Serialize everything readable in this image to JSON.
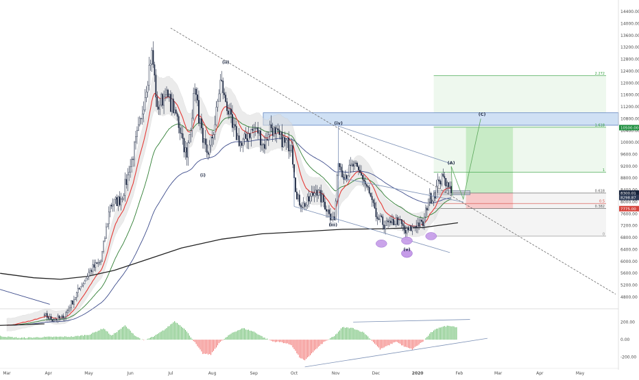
{
  "chart_data": {
    "type": "candlestick",
    "grid": false,
    "price_axis": {
      "position": "right",
      "ylim": [
        4500,
        14700
      ],
      "ticks": [
        "14400.00",
        "14000.00",
        "13600.00",
        "13200.00",
        "12800.00",
        "12400.00",
        "12000.00",
        "11600.00",
        "11200.00",
        "10800.00",
        "10400.00",
        "10000.00",
        "9600.00",
        "9200.00",
        "8800.00",
        "8400.00",
        "8000.00",
        "7600.00",
        "7200.00",
        "6800.00",
        "6400.00",
        "6000.00",
        "5600.00",
        "5200.00",
        "4800.00"
      ],
      "tick_values": [
        14400,
        14000,
        13600,
        13200,
        12800,
        12400,
        12000,
        11600,
        11200,
        10800,
        10400,
        10000,
        9600,
        9200,
        8800,
        8400,
        8000,
        7600,
        7200,
        6800,
        6400,
        6000,
        5600,
        5200,
        4800
      ]
    },
    "time_axis": {
      "ticks": [
        "Mar",
        "Apr",
        "May",
        "Jun",
        "Jul",
        "Aug",
        "Sep",
        "Oct",
        "Nov",
        "Dec",
        "2020",
        "Feb",
        "Mar",
        "Apr",
        "May"
      ],
      "tick_days": [
        0,
        31,
        61,
        92,
        122,
        153,
        184,
        214,
        245,
        275,
        306,
        337,
        366,
        397,
        427
      ]
    },
    "candles_anchor_day_close": [
      [
        0,
        3850
      ],
      [
        28,
        4200
      ],
      [
        33,
        4050
      ],
      [
        42,
        4100
      ],
      [
        55,
        5150
      ],
      [
        62,
        5700
      ],
      [
        70,
        6000
      ],
      [
        77,
        7900
      ],
      [
        85,
        8100
      ],
      [
        91,
        9000
      ],
      [
        100,
        10800
      ],
      [
        108,
        13100
      ],
      [
        112,
        11200
      ],
      [
        118,
        11600
      ],
      [
        125,
        11100
      ],
      [
        130,
        10300
      ],
      [
        134,
        9500
      ],
      [
        140,
        11800
      ],
      [
        146,
        10000
      ],
      [
        150,
        9600
      ],
      [
        155,
        10600
      ],
      [
        159,
        12100
      ],
      [
        162,
        11600
      ],
      [
        168,
        10500
      ],
      [
        175,
        9900
      ],
      [
        180,
        10300
      ],
      [
        186,
        10500
      ],
      [
        192,
        9800
      ],
      [
        196,
        10600
      ],
      [
        200,
        10300
      ],
      [
        207,
        10000
      ],
      [
        212,
        9900
      ],
      [
        216,
        8100
      ],
      [
        222,
        7850
      ],
      [
        230,
        8400
      ],
      [
        236,
        8000
      ],
      [
        240,
        7600
      ],
      [
        244,
        7400
      ],
      [
        247,
        9300
      ],
      [
        252,
        8900
      ],
      [
        258,
        9200
      ],
      [
        264,
        8900
      ],
      [
        270,
        8300
      ],
      [
        275,
        7500
      ],
      [
        282,
        7200
      ],
      [
        286,
        7300
      ],
      [
        292,
        7400
      ],
      [
        297,
        6950
      ],
      [
        302,
        7150
      ],
      [
        306,
        7300
      ],
      [
        310,
        7200
      ],
      [
        314,
        8100
      ],
      [
        318,
        8200
      ],
      [
        322,
        8700
      ],
      [
        326,
        8800
      ],
      [
        329,
        8500
      ],
      [
        331,
        8300
      ]
    ],
    "waves": [
      {
        "label": "(i)",
        "day": 146,
        "price": 8850
      },
      {
        "label": "(ii)",
        "day": 163,
        "price": 12650
      },
      {
        "label": "(iii)",
        "day": 243,
        "price": 7180
      },
      {
        "label": "(iv)",
        "day": 247,
        "price": 10600
      },
      {
        "label": "(v)",
        "day": 298,
        "price": 6350
      },
      {
        "label": "(A)",
        "day": 331,
        "price": 9270
      },
      {
        "label": "(C)",
        "day": 354,
        "price": 10900
      }
    ],
    "fib_levels": [
      {
        "label": "2.272",
        "price": 12250,
        "color": "#2e9e3a"
      },
      {
        "label": "1.618",
        "price": 10510,
        "color": "#2e9e3a"
      },
      {
        "label": "1",
        "price": 9000,
        "color": "#2e9e3a"
      },
      {
        "label": "0.618",
        "price": 8300,
        "color": "#555555"
      },
      {
        "label": "0.5",
        "price": 7950,
        "color": "#d6453d"
      },
      {
        "label": "0.382",
        "price": 7780,
        "color": "#555555"
      },
      {
        "label": "0",
        "price": 6850,
        "color": "#888888"
      }
    ],
    "price_tags": [
      {
        "label": "10500.00",
        "price": 10500,
        "bg": "#1e8e3e"
      },
      {
        "label": "8300.01",
        "price": 8300,
        "bg": "#16223a"
      },
      {
        "label": "8298.87",
        "price": 8150,
        "bg": "#2c3a55"
      },
      {
        "label": "7775.00",
        "price": 7775,
        "bg": "#d6453d"
      }
    ],
    "oscillator": {
      "type": "histogram",
      "ticks": [
        "200.00",
        "0.00",
        "-200.00"
      ],
      "tick_values": [
        200,
        0,
        -200
      ],
      "ylim": [
        -280,
        320
      ],
      "positive_color": "#4caf50",
      "negative_color": "#ef5350",
      "anchors_day_value": [
        [
          -20,
          60
        ],
        [
          10,
          20
        ],
        [
          30,
          30
        ],
        [
          50,
          35
        ],
        [
          62,
          60
        ],
        [
          72,
          130
        ],
        [
          78,
          45
        ],
        [
          88,
          160
        ],
        [
          96,
          40
        ],
        [
          102,
          -10
        ],
        [
          110,
          40
        ],
        [
          118,
          120
        ],
        [
          125,
          210
        ],
        [
          132,
          130
        ],
        [
          138,
          10
        ],
        [
          146,
          -160
        ],
        [
          152,
          -170
        ],
        [
          158,
          -40
        ],
        [
          168,
          80
        ],
        [
          176,
          130
        ],
        [
          184,
          90
        ],
        [
          192,
          20
        ],
        [
          198,
          -20
        ],
        [
          205,
          -30
        ],
        [
          212,
          -60
        ],
        [
          218,
          -200
        ],
        [
          222,
          -240
        ],
        [
          228,
          -140
        ],
        [
          236,
          -30
        ],
        [
          244,
          40
        ],
        [
          250,
          140
        ],
        [
          258,
          130
        ],
        [
          266,
          80
        ],
        [
          272,
          -10
        ],
        [
          278,
          -110
        ],
        [
          285,
          -60
        ],
        [
          290,
          -20
        ],
        [
          296,
          -80
        ],
        [
          302,
          -110
        ],
        [
          310,
          -20
        ],
        [
          316,
          80
        ],
        [
          322,
          140
        ],
        [
          330,
          160
        ],
        [
          336,
          140
        ]
      ]
    },
    "colors": {
      "up": "#1f2a44",
      "ema_fast": "#e53935",
      "ema_mid": "#2e7d32",
      "sma_slow": "#3b4a8a",
      "sma_200": "#222222",
      "channel": "#7a8fb5",
      "box_fill": "#cfe0f4",
      "target_fill": "#c8ebc6",
      "stop_fill": "#f7caca",
      "ellipse": "#c59be8"
    }
  }
}
